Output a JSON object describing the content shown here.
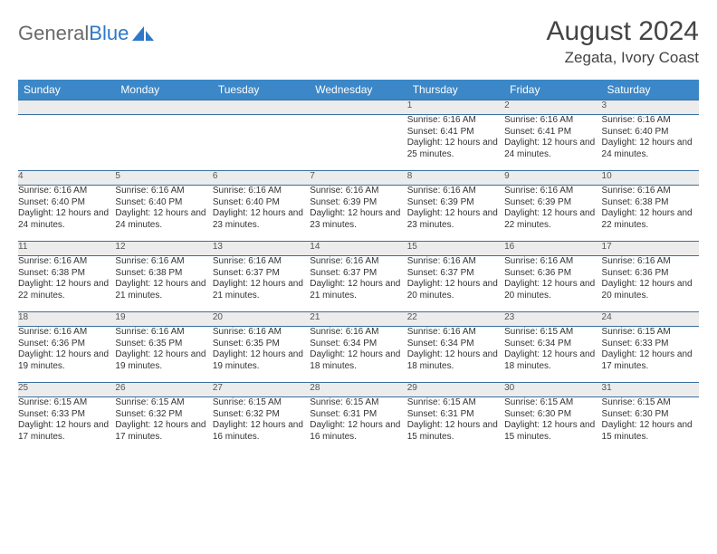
{
  "brand": {
    "part1": "General",
    "part2": "Blue"
  },
  "title": "August 2024",
  "location": "Zegata, Ivory Coast",
  "colors": {
    "header_bg": "#3b87c8",
    "header_text": "#ffffff",
    "rule": "#3b6fa0",
    "daynum_bg": "#ececec",
    "text": "#333333",
    "brand_gray": "#6a6a6a",
    "brand_blue": "#2d78c7"
  },
  "day_headers": [
    "Sunday",
    "Monday",
    "Tuesday",
    "Wednesday",
    "Thursday",
    "Friday",
    "Saturday"
  ],
  "layout": {
    "first_weekday_index": 4,
    "num_days": 31,
    "num_weeks": 5,
    "col_width_pct": 14.2857
  },
  "days": {
    "1": {
      "sunrise": "6:16 AM",
      "sunset": "6:41 PM",
      "daylight": "12 hours and 25 minutes."
    },
    "2": {
      "sunrise": "6:16 AM",
      "sunset": "6:41 PM",
      "daylight": "12 hours and 24 minutes."
    },
    "3": {
      "sunrise": "6:16 AM",
      "sunset": "6:40 PM",
      "daylight": "12 hours and 24 minutes."
    },
    "4": {
      "sunrise": "6:16 AM",
      "sunset": "6:40 PM",
      "daylight": "12 hours and 24 minutes."
    },
    "5": {
      "sunrise": "6:16 AM",
      "sunset": "6:40 PM",
      "daylight": "12 hours and 24 minutes."
    },
    "6": {
      "sunrise": "6:16 AM",
      "sunset": "6:40 PM",
      "daylight": "12 hours and 23 minutes."
    },
    "7": {
      "sunrise": "6:16 AM",
      "sunset": "6:39 PM",
      "daylight": "12 hours and 23 minutes."
    },
    "8": {
      "sunrise": "6:16 AM",
      "sunset": "6:39 PM",
      "daylight": "12 hours and 23 minutes."
    },
    "9": {
      "sunrise": "6:16 AM",
      "sunset": "6:39 PM",
      "daylight": "12 hours and 22 minutes."
    },
    "10": {
      "sunrise": "6:16 AM",
      "sunset": "6:38 PM",
      "daylight": "12 hours and 22 minutes."
    },
    "11": {
      "sunrise": "6:16 AM",
      "sunset": "6:38 PM",
      "daylight": "12 hours and 22 minutes."
    },
    "12": {
      "sunrise": "6:16 AM",
      "sunset": "6:38 PM",
      "daylight": "12 hours and 21 minutes."
    },
    "13": {
      "sunrise": "6:16 AM",
      "sunset": "6:37 PM",
      "daylight": "12 hours and 21 minutes."
    },
    "14": {
      "sunrise": "6:16 AM",
      "sunset": "6:37 PM",
      "daylight": "12 hours and 21 minutes."
    },
    "15": {
      "sunrise": "6:16 AM",
      "sunset": "6:37 PM",
      "daylight": "12 hours and 20 minutes."
    },
    "16": {
      "sunrise": "6:16 AM",
      "sunset": "6:36 PM",
      "daylight": "12 hours and 20 minutes."
    },
    "17": {
      "sunrise": "6:16 AM",
      "sunset": "6:36 PM",
      "daylight": "12 hours and 20 minutes."
    },
    "18": {
      "sunrise": "6:16 AM",
      "sunset": "6:36 PM",
      "daylight": "12 hours and 19 minutes."
    },
    "19": {
      "sunrise": "6:16 AM",
      "sunset": "6:35 PM",
      "daylight": "12 hours and 19 minutes."
    },
    "20": {
      "sunrise": "6:16 AM",
      "sunset": "6:35 PM",
      "daylight": "12 hours and 19 minutes."
    },
    "21": {
      "sunrise": "6:16 AM",
      "sunset": "6:34 PM",
      "daylight": "12 hours and 18 minutes."
    },
    "22": {
      "sunrise": "6:16 AM",
      "sunset": "6:34 PM",
      "daylight": "12 hours and 18 minutes."
    },
    "23": {
      "sunrise": "6:15 AM",
      "sunset": "6:34 PM",
      "daylight": "12 hours and 18 minutes."
    },
    "24": {
      "sunrise": "6:15 AM",
      "sunset": "6:33 PM",
      "daylight": "12 hours and 17 minutes."
    },
    "25": {
      "sunrise": "6:15 AM",
      "sunset": "6:33 PM",
      "daylight": "12 hours and 17 minutes."
    },
    "26": {
      "sunrise": "6:15 AM",
      "sunset": "6:32 PM",
      "daylight": "12 hours and 17 minutes."
    },
    "27": {
      "sunrise": "6:15 AM",
      "sunset": "6:32 PM",
      "daylight": "12 hours and 16 minutes."
    },
    "28": {
      "sunrise": "6:15 AM",
      "sunset": "6:31 PM",
      "daylight": "12 hours and 16 minutes."
    },
    "29": {
      "sunrise": "6:15 AM",
      "sunset": "6:31 PM",
      "daylight": "12 hours and 15 minutes."
    },
    "30": {
      "sunrise": "6:15 AM",
      "sunset": "6:30 PM",
      "daylight": "12 hours and 15 minutes."
    },
    "31": {
      "sunrise": "6:15 AM",
      "sunset": "6:30 PM",
      "daylight": "12 hours and 15 minutes."
    }
  },
  "labels": {
    "sunrise": "Sunrise: ",
    "sunset": "Sunset: ",
    "daylight": "Daylight: "
  }
}
